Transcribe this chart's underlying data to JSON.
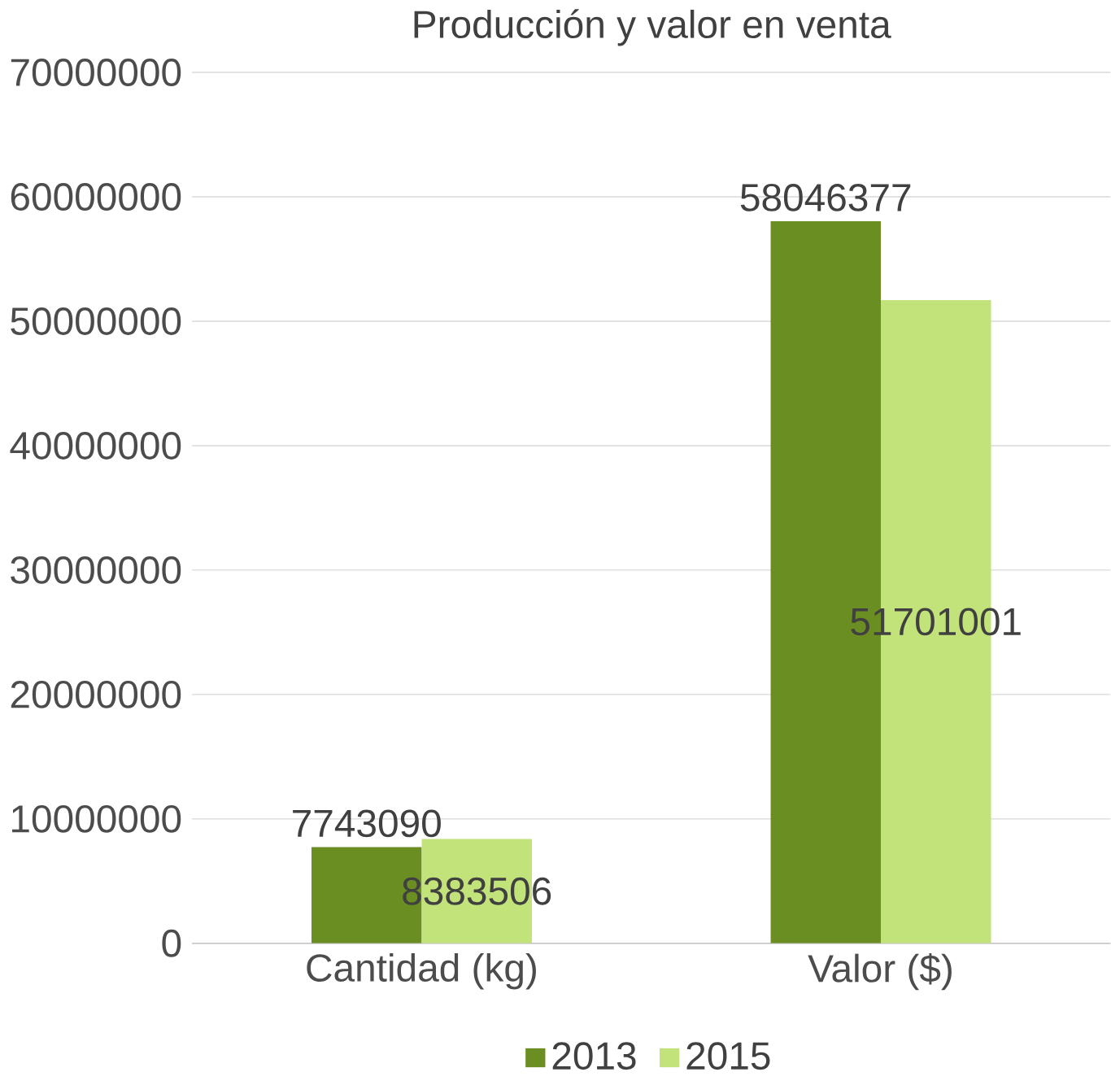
{
  "chart_data": {
    "type": "bar",
    "title": "Producción y valor en venta",
    "categories": [
      "Cantidad (kg)",
      "Valor ($)"
    ],
    "series": [
      {
        "name": "2013",
        "color": "#6b8e23",
        "values": [
          7743090,
          58046377
        ]
      },
      {
        "name": "2015",
        "color": "#c2e27a",
        "values": [
          8383506,
          51701001
        ]
      }
    ],
    "ylim": [
      0,
      70000000
    ],
    "yticks": [
      0,
      10000000,
      20000000,
      30000000,
      40000000,
      50000000,
      60000000,
      70000000
    ],
    "grid": "y",
    "legend": "bottom",
    "data_labels": true
  }
}
